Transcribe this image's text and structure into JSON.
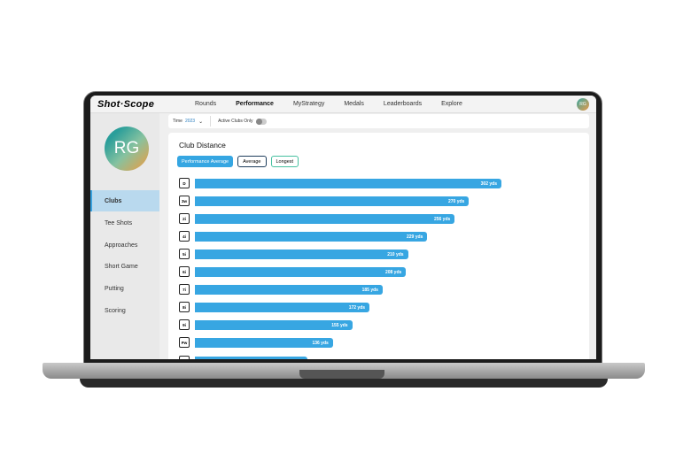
{
  "app": {
    "logo": "Shot·Scope",
    "user_initials": "RG"
  },
  "nav": [
    {
      "label": "Rounds"
    },
    {
      "label": "Performance",
      "active": true
    },
    {
      "label": "MyStrategy"
    },
    {
      "label": "Medals"
    },
    {
      "label": "Leaderboards"
    },
    {
      "label": "Explore"
    }
  ],
  "sidebar": {
    "avatar": "RG",
    "items": [
      {
        "label": "Clubs",
        "active": true
      },
      {
        "label": "Tee Shots"
      },
      {
        "label": "Approaches"
      },
      {
        "label": "Short Game"
      },
      {
        "label": "Putting"
      },
      {
        "label": "Scoring"
      }
    ]
  },
  "filters": {
    "time_label": "Time",
    "time_value": "2023",
    "active_clubs_label": "Active Clubs Only",
    "active_clubs_on": false
  },
  "card": {
    "title": "Club Distance",
    "buttons": [
      {
        "label": "Performance Average",
        "selected": true
      },
      {
        "label": "Average"
      },
      {
        "label": "Longest"
      }
    ]
  },
  "colors": {
    "bar": "#37a6e2",
    "accent": "#35a6e2",
    "average_border": "#1d3d5c",
    "longest_border": "#46c0a0"
  },
  "chart_data": {
    "type": "bar",
    "orientation": "horizontal",
    "unit": "yds",
    "categories": [
      "D",
      "3w",
      "2i",
      "4i",
      "5i",
      "6i",
      "7i",
      "8i",
      "9i",
      "Pw"
    ],
    "values": [
      302,
      270,
      256,
      229,
      210,
      208,
      185,
      172,
      155,
      136
    ],
    "labels": [
      "302 yds",
      "270 yds",
      "256 yds",
      "229 yds",
      "210 yds",
      "208 yds",
      "185 yds",
      "172 yds",
      "155 yds",
      "136 yds"
    ]
  }
}
